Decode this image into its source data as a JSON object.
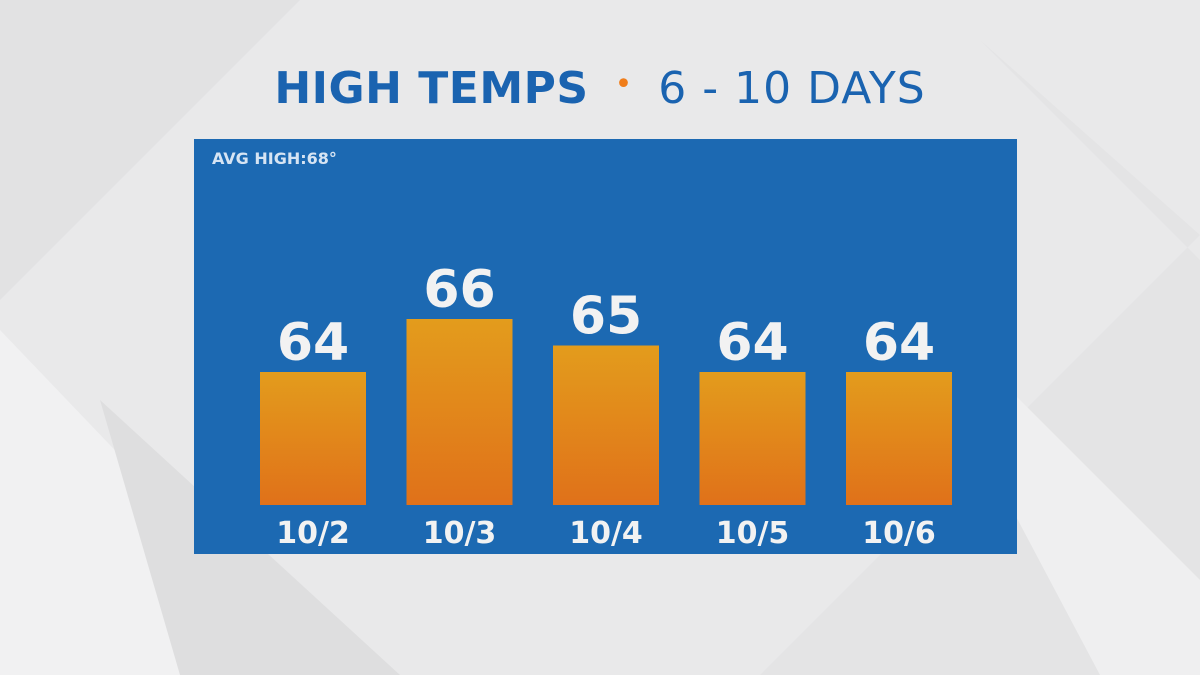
{
  "header": {
    "title_bold": "HIGH TEMPS",
    "separator": "•",
    "title_light": "6 - 10 DAYS"
  },
  "colors": {
    "title": "#1a63b0",
    "separator": "#f07d1a",
    "panel": "#1c69b2",
    "bar_top": "#e39c1c",
    "bar_bottom": "#e0711a",
    "label": "#f2f2f2"
  },
  "panel": {
    "avg_label": "AVG HIGH:68°"
  },
  "chart_data": {
    "type": "bar",
    "title": "HIGH TEMPS • 6 - 10 DAYS",
    "categories": [
      "10/2",
      "10/3",
      "10/4",
      "10/5",
      "10/6"
    ],
    "values": [
      64,
      66,
      65,
      64,
      64
    ],
    "value_labels": [
      "64",
      "66",
      "65",
      "64",
      "64"
    ],
    "annotation": "AVG HIGH:68°"
  }
}
